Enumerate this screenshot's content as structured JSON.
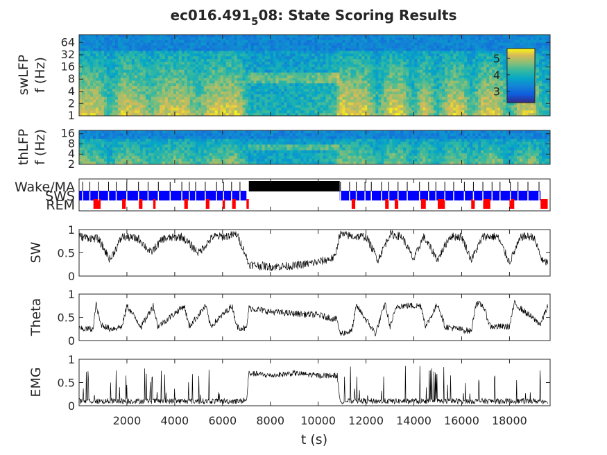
{
  "chart_data": [
    {
      "id": "swLFP",
      "type": "heatmap",
      "title": "ec016.491",
      "title_sub": "5",
      "title_suffix": "08: State Scoring Results",
      "ylabel_top": "swLFP",
      "ylabel_bottom": "f (Hz)",
      "y_scale": "log2",
      "ylim": [
        1,
        100
      ],
      "yticks": [
        "1",
        "2",
        "4",
        "8",
        "16",
        "32",
        "64"
      ],
      "ytick_values": [
        1,
        2,
        4,
        8,
        16,
        32,
        64
      ],
      "colormap": "parula",
      "colorbar_ticks": [
        "3",
        "4",
        "5"
      ],
      "colorbar_values": [
        3,
        4,
        5
      ],
      "colorbar_range": [
        2.3,
        5.6
      ],
      "colorbar_location": "top-right"
    },
    {
      "id": "thLFP",
      "type": "heatmap",
      "ylabel_top": "thLFP",
      "ylabel_bottom": "f (Hz)",
      "y_scale": "log2",
      "ylim": [
        2,
        20
      ],
      "yticks": [
        "2",
        "4",
        "8",
        "16"
      ],
      "ytick_values": [
        2,
        4,
        8,
        16
      ],
      "colormap": "parula"
    },
    {
      "id": "states",
      "type": "scatter",
      "states": [
        "Wake/MA",
        "SWS",
        "REM"
      ],
      "state_colors": [
        "#000000",
        "#0000ff",
        "#ff0000"
      ],
      "wake_periods": [
        [
          7100,
          10900
        ]
      ],
      "sws_bands": [
        [
          0,
          7000
        ],
        [
          10900,
          19300
        ]
      ],
      "rem_periods": [
        [
          600,
          900
        ],
        [
          1800,
          1950
        ],
        [
          2500,
          2650
        ],
        [
          3100,
          3200
        ],
        [
          4400,
          4550
        ],
        [
          5300,
          5450
        ],
        [
          6000,
          6100
        ],
        [
          6400,
          6550
        ],
        [
          7000,
          7100
        ],
        [
          11400,
          11550
        ],
        [
          12800,
          12950
        ],
        [
          13200,
          13350
        ],
        [
          14300,
          14500
        ],
        [
          15000,
          15300
        ],
        [
          16400,
          16550
        ],
        [
          16900,
          17200
        ],
        [
          18000,
          18200
        ],
        [
          19300,
          19600
        ]
      ]
    },
    {
      "id": "SW",
      "type": "line",
      "ylabel": "SW",
      "ylim": [
        0,
        1
      ],
      "yticks": [
        "0",
        "0.5",
        "1"
      ],
      "ytick_values": [
        0,
        0.5,
        1
      ],
      "x": [
        0,
        800,
        1300,
        1800,
        2500,
        3000,
        3500,
        4300,
        5000,
        5600,
        6100,
        6600,
        6900,
        7100,
        8000,
        9000,
        10000,
        10700,
        10900,
        11500,
        12000,
        12500,
        13000,
        13500,
        14000,
        14400,
        15000,
        15500,
        16000,
        16400,
        16900,
        17500,
        18000,
        18500,
        19000,
        19400,
        19600
      ],
      "values": [
        0.85,
        0.8,
        0.35,
        0.85,
        0.8,
        0.5,
        0.8,
        0.85,
        0.5,
        0.85,
        0.85,
        0.9,
        0.55,
        0.25,
        0.2,
        0.22,
        0.3,
        0.4,
        0.9,
        0.85,
        0.85,
        0.35,
        0.9,
        0.85,
        0.35,
        0.85,
        0.35,
        0.85,
        0.85,
        0.35,
        0.85,
        0.85,
        0.3,
        0.85,
        0.85,
        0.3,
        0.3
      ]
    },
    {
      "id": "Theta",
      "type": "line",
      "ylabel": "Theta",
      "ylim": [
        0,
        1
      ],
      "yticks": [
        "0",
        "0.5",
        "1"
      ],
      "ytick_values": [
        0,
        0.5,
        1
      ],
      "x": [
        0,
        600,
        700,
        900,
        1300,
        1800,
        2000,
        2600,
        3100,
        3300,
        4400,
        4600,
        5300,
        5500,
        6400,
        6600,
        7000,
        7100,
        8000,
        9000,
        10000,
        10800,
        10900,
        11400,
        11600,
        12400,
        12800,
        13000,
        13300,
        14300,
        14500,
        15000,
        15300,
        16400,
        16600,
        16900,
        17200,
        18000,
        18200,
        19300,
        19600
      ],
      "values": [
        0.25,
        0.25,
        0.8,
        0.35,
        0.25,
        0.3,
        0.75,
        0.3,
        0.75,
        0.3,
        0.75,
        0.3,
        0.75,
        0.3,
        0.75,
        0.3,
        0.25,
        0.7,
        0.62,
        0.58,
        0.55,
        0.45,
        0.15,
        0.2,
        0.75,
        0.15,
        0.8,
        0.3,
        0.75,
        0.75,
        0.3,
        0.8,
        0.3,
        0.2,
        0.8,
        0.75,
        0.3,
        0.3,
        0.8,
        0.35,
        0.75
      ]
    },
    {
      "id": "EMG",
      "type": "line",
      "ylabel": "EMG",
      "ylim": [
        0,
        1
      ],
      "yticks": [
        "0",
        "0.5",
        "1"
      ],
      "ytick_values": [
        0,
        0.5,
        1
      ],
      "x": [
        0,
        7000,
        7100,
        8000,
        9000,
        10000,
        10800,
        10900,
        19600
      ],
      "values": [
        0.1,
        0.1,
        0.7,
        0.65,
        0.7,
        0.65,
        0.65,
        0.1,
        0.1
      ],
      "xlabel": "t (s)",
      "xlim": [
        0,
        19700
      ],
      "xticks": [
        "2000",
        "4000",
        "6000",
        "8000",
        "10000",
        "12000",
        "14000",
        "16000",
        "18000"
      ],
      "xtick_values": [
        2000,
        4000,
        6000,
        8000,
        10000,
        12000,
        14000,
        16000,
        18000
      ]
    }
  ]
}
